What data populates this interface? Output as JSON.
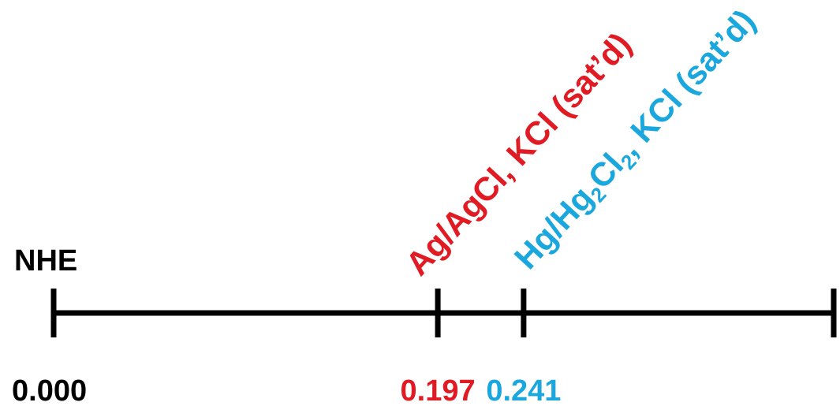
{
  "scale": {
    "reference_label": "NHE",
    "min": 0.0,
    "max": 0.4,
    "axis_color": "#000000",
    "ticks": [
      {
        "name": "nhe",
        "value": 0.0,
        "value_text": "0.000",
        "color": "#000000"
      },
      {
        "name": "ag-agcl",
        "value": 0.197,
        "value_text": "0.197",
        "color": "#e01b24",
        "electrode": {
          "prefix": "Ag/AgCl, KCl (sat’d)"
        }
      },
      {
        "name": "sce",
        "value": 0.241,
        "value_text": "0.241",
        "color": "#1aa7dd",
        "electrode": {
          "part1": "Hg/Hg",
          "sub1": "2",
          "part2": "Cl",
          "sub2": "2",
          "part3": ", KCl (sat’d)"
        }
      },
      {
        "name": "end",
        "value": 0.4,
        "value_text": "",
        "color": "#000000"
      }
    ]
  }
}
